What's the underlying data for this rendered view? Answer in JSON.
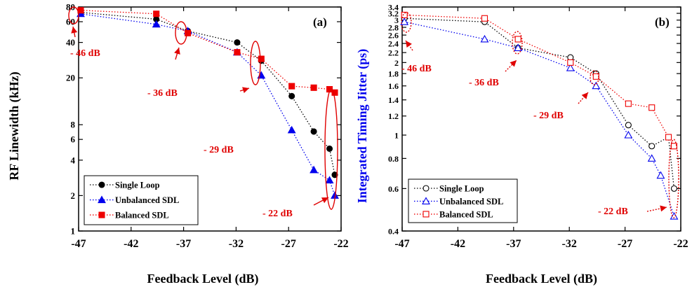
{
  "chart_data": [
    {
      "type": "line",
      "panel_label": "(a)",
      "xlabel": "Feedback Level (dB)",
      "ylabel": "RF Linewidth (kHz)",
      "yscale": "log",
      "xlim": [
        -47,
        -22
      ],
      "ylim": [
        1,
        80
      ],
      "x_ticks": [
        "-47",
        "-42",
        "-37",
        "-32",
        "-27",
        "-22"
      ],
      "y_ticks": [
        "1",
        "2",
        "4",
        "6",
        "8",
        "20",
        "40",
        "60",
        "80"
      ],
      "grid": false,
      "legend_position": "bottom-left",
      "series": [
        {
          "name": "Single Loop",
          "color": "#000000",
          "marker": "circle-filled",
          "x": [
            -46.8,
            -39.6,
            -36.6,
            -31.9,
            -29.6,
            -26.7,
            -24.6,
            -23.1,
            -22.6
          ],
          "y": [
            72,
            63,
            50,
            40,
            28,
            14,
            7,
            5,
            3
          ]
        },
        {
          "name": "Unbalanced SDL",
          "color": "#0000ee",
          "marker": "triangle-filled",
          "x": [
            -46.8,
            -39.6,
            -36.6,
            -31.9,
            -29.6,
            -26.7,
            -24.6,
            -23.1,
            -22.6
          ],
          "y": [
            70,
            57,
            50,
            33,
            21,
            7.2,
            3.3,
            2.7,
            2
          ]
        },
        {
          "name": "Balanced SDL",
          "color": "#ee0000",
          "marker": "square-filled",
          "x": [
            -46.8,
            -39.6,
            -36.6,
            -31.9,
            -29.6,
            -26.7,
            -24.6,
            -23.1,
            -22.6
          ],
          "y": [
            75,
            70,
            48,
            33,
            29,
            17,
            16.5,
            16,
            15
          ]
        }
      ],
      "annotations": [
        "- 46 dB",
        "- 36 dB",
        "- 29 dB",
        "- 22 dB"
      ]
    },
    {
      "type": "line",
      "panel_label": "(b)",
      "xlabel": "Feedback Level (dB)",
      "ylabel": "Integrated Timing Jitter (ps)",
      "yscale": "log",
      "xlim": [
        -47,
        -22
      ],
      "ylim": [
        0.4,
        3.4
      ],
      "x_ticks": [
        "-47",
        "-42",
        "-37",
        "-32",
        "-27",
        "-22"
      ],
      "y_ticks": [
        "0.4",
        "0.6",
        "0.8",
        "1",
        "1.2",
        "1.4",
        "1.6",
        "1.8",
        "2",
        "2.2",
        "2.4",
        "2.6",
        "2.8",
        "3",
        "3.2",
        "3.4"
      ],
      "grid": false,
      "legend_position": "bottom-left",
      "series": [
        {
          "name": "Single Loop",
          "color": "#000000",
          "marker": "circle-open",
          "x": [
            -46.8,
            -39.6,
            -36.6,
            -31.9,
            -29.6,
            -26.7,
            -24.6,
            -23.1,
            -22.6
          ],
          "y": [
            3.05,
            2.95,
            2.3,
            2.1,
            1.8,
            1.1,
            0.9,
            0.98,
            0.6
          ]
        },
        {
          "name": "Unbalanced SDL",
          "color": "#0000ee",
          "marker": "triangle-open",
          "x": [
            -46.8,
            -39.6,
            -36.6,
            -31.9,
            -29.6,
            -26.7,
            -24.6,
            -23.8,
            -22.6
          ],
          "y": [
            2.95,
            2.5,
            2.3,
            1.9,
            1.6,
            1.0,
            0.8,
            0.68,
            0.46
          ]
        },
        {
          "name": "Balanced SDL",
          "color": "#ee0000",
          "marker": "square-open",
          "x": [
            -46.8,
            -39.6,
            -36.6,
            -31.9,
            -29.6,
            -26.7,
            -24.6,
            -23.1,
            -22.6
          ],
          "y": [
            3.15,
            3.05,
            2.5,
            2.0,
            1.75,
            1.35,
            1.3,
            0.98,
            0.9
          ]
        }
      ],
      "annotations": [
        "- 46 dB",
        "- 36 dB",
        "- 29 dB",
        "- 22 dB"
      ]
    }
  ]
}
